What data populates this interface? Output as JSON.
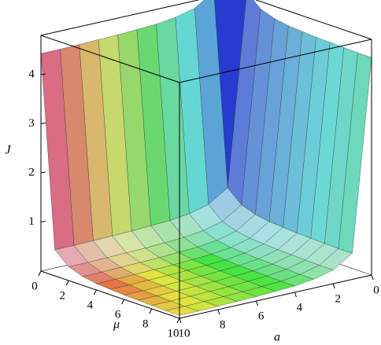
{
  "chart_data": {
    "type": "surface",
    "xlabel": "a",
    "ylabel": "μ",
    "zlabel": "J",
    "x": [
      0,
      1,
      2,
      3,
      4,
      5,
      6,
      7,
      8,
      9,
      10
    ],
    "y": [
      0,
      1,
      2,
      3,
      4,
      5,
      6,
      7,
      8,
      9,
      10
    ],
    "z": [
      [
        5.2,
        4.9,
        4.65,
        4.55,
        4.5,
        4.48,
        4.46,
        4.45,
        4.44,
        4.43,
        4.43
      ],
      [
        4.9,
        1.0,
        0.75,
        0.65,
        0.6,
        0.58,
        0.56,
        0.55,
        0.54,
        0.53,
        0.53
      ],
      [
        4.65,
        0.75,
        0.5,
        0.4,
        0.35,
        0.33,
        0.31,
        0.3,
        0.29,
        0.28,
        0.28
      ],
      [
        4.55,
        0.65,
        0.4,
        0.3,
        0.25,
        0.23,
        0.21,
        0.2,
        0.19,
        0.18,
        0.18
      ],
      [
        4.5,
        0.6,
        0.35,
        0.25,
        0.2,
        0.18,
        0.16,
        0.15,
        0.14,
        0.13,
        0.13
      ],
      [
        4.48,
        0.58,
        0.33,
        0.23,
        0.18,
        0.16,
        0.14,
        0.13,
        0.12,
        0.11,
        0.11
      ],
      [
        4.46,
        0.56,
        0.31,
        0.21,
        0.16,
        0.14,
        0.12,
        0.11,
        0.1,
        0.09,
        0.09
      ],
      [
        4.45,
        0.55,
        0.3,
        0.2,
        0.15,
        0.13,
        0.11,
        0.1,
        0.09,
        0.08,
        0.08
      ],
      [
        4.44,
        0.54,
        0.29,
        0.19,
        0.14,
        0.12,
        0.1,
        0.09,
        0.08,
        0.07,
        0.07
      ],
      [
        4.43,
        0.53,
        0.28,
        0.18,
        0.13,
        0.11,
        0.09,
        0.08,
        0.07,
        0.06,
        0.06
      ],
      [
        4.43,
        0.53,
        0.28,
        0.18,
        0.13,
        0.11,
        0.09,
        0.08,
        0.07,
        0.06,
        0.06
      ]
    ],
    "xlim": [
      0,
      10
    ],
    "ylim": [
      0,
      10
    ],
    "zlim": [
      0,
      4.8
    ],
    "xticks": [
      0,
      2,
      4,
      6,
      8,
      10
    ],
    "yticks": [
      0,
      2,
      4,
      6,
      8,
      10
    ],
    "zticks": [
      1,
      2,
      3,
      4
    ]
  }
}
